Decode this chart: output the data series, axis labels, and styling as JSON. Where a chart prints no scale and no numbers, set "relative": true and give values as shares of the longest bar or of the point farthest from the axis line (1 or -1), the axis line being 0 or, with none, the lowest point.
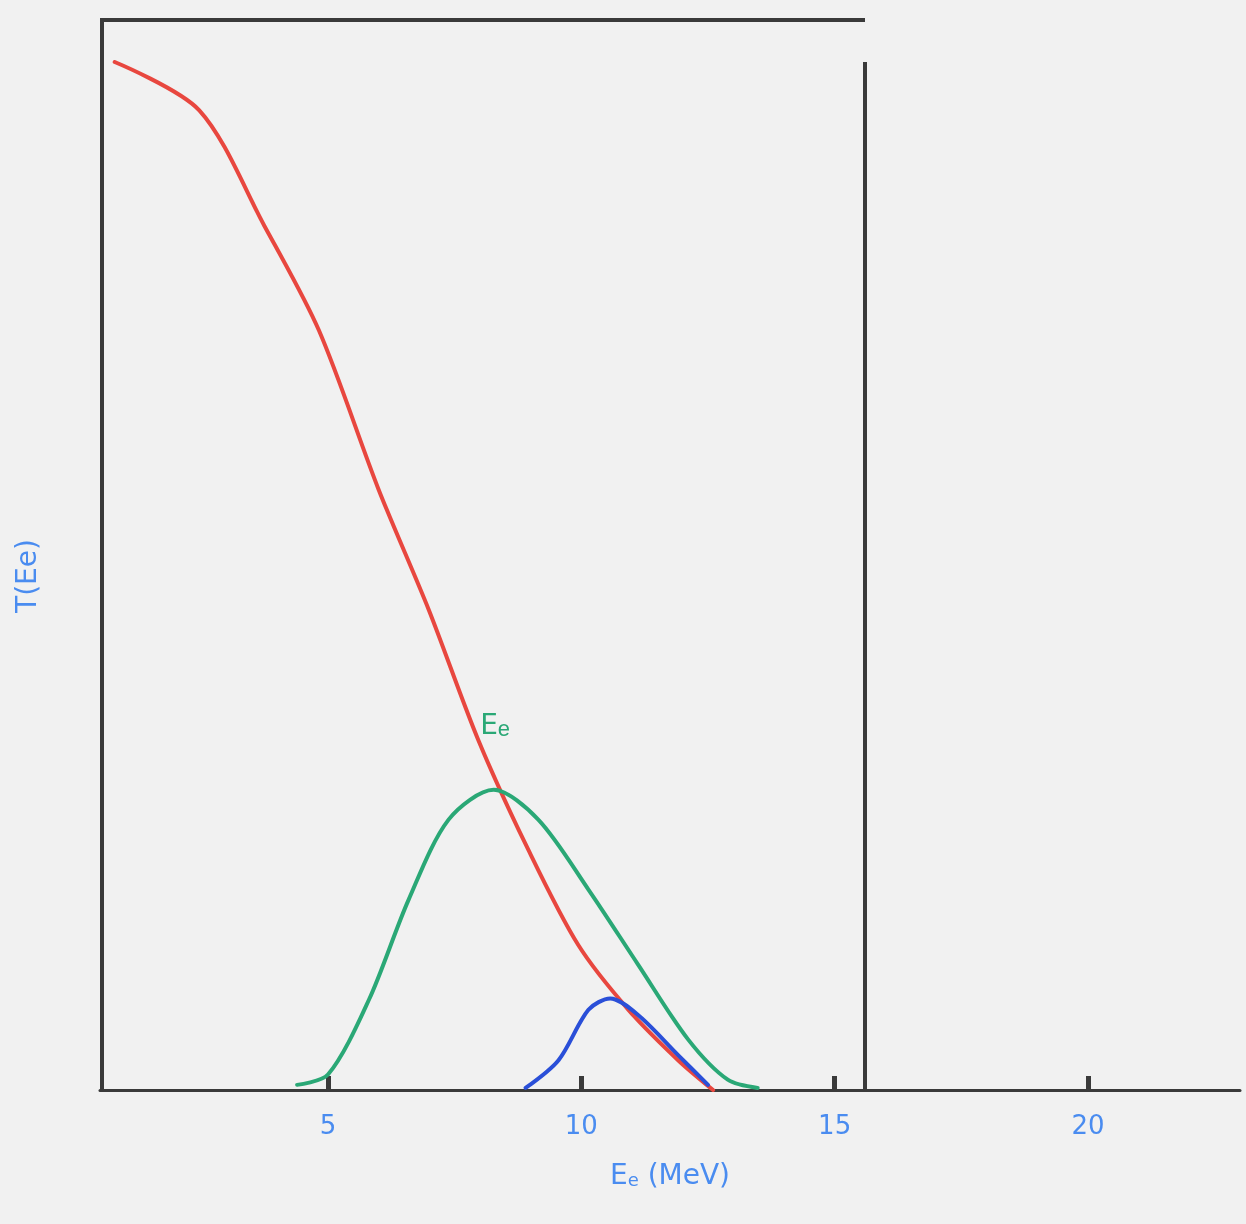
{
  "chart_data": {
    "type": "line",
    "relative": true,
    "xlabel": "E$_{e}$ (MeV)",
    "ylabel": "T(Ee)",
    "xlim": [
      0.5,
      23
    ],
    "xticks": [
      5,
      10,
      15,
      20
    ],
    "grid": false,
    "ref_lines": [
      {
        "axis": "x",
        "value": 15.6,
        "color": "#3a3a3a"
      }
    ],
    "marker": "none",
    "line_style": "solid",
    "annotations": [
      {
        "text": "E$_{e}$",
        "x": 8.2,
        "y": 0.32
      }
    ],
    "series": [
      {
        "color": "#e8473f",
        "x": [
          0.79,
          2.46,
          3.74,
          4.82,
          6.0,
          6.99,
          7.97,
          8.96,
          9.94,
          10.93,
          11.91,
          12.6
        ],
        "values": [
          1.0,
          0.953,
          0.841,
          0.739,
          0.584,
          0.467,
          0.34,
          0.233,
          0.141,
          0.078,
          0.029,
          0
        ]
      },
      {
        "color": "#2aa876",
        "x": [
          4.39,
          5.0,
          5.81,
          6.59,
          7.38,
          8.27,
          9.15,
          10.14,
          11.12,
          12.11,
          12.89,
          13.48
        ],
        "values": [
          0.005,
          0.015,
          0.088,
          0.185,
          0.263,
          0.292,
          0.263,
          0.195,
          0.122,
          0.049,
          0.01,
          0.002
        ]
      },
      {
        "color": "#2a4fd8",
        "x": [
          8.9,
          9.55,
          10.14,
          10.57,
          11.12,
          11.91,
          12.5
        ],
        "values": [
          0.002,
          0.029,
          0.078,
          0.089,
          0.073,
          0.034,
          0.005
        ]
      }
    ]
  }
}
